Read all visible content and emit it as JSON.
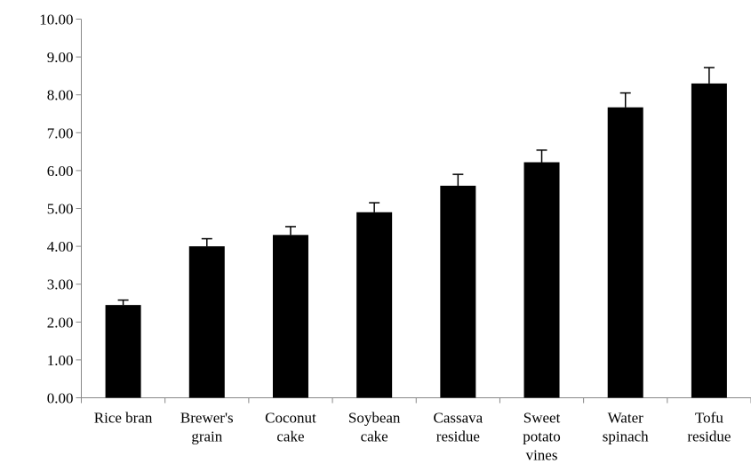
{
  "chart_data": {
    "type": "bar",
    "title": "",
    "xlabel": "",
    "ylabel": "",
    "ylim": [
      0,
      10
    ],
    "y_ticks": [
      "0.00",
      "1.00",
      "2.00",
      "3.00",
      "4.00",
      "5.00",
      "6.00",
      "7.00",
      "8.00",
      "9.00",
      "10.00"
    ],
    "categories": [
      [
        "Rice bran"
      ],
      [
        "Brewer's",
        "grain"
      ],
      [
        "Coconut",
        "cake"
      ],
      [
        "Soybean",
        "cake"
      ],
      [
        "Cassava",
        "residue"
      ],
      [
        "Sweet",
        "potato",
        "vines"
      ],
      [
        "Water",
        "spinach"
      ],
      [
        "Tofu",
        "residue"
      ]
    ],
    "values": [
      2.45,
      4.0,
      4.3,
      4.9,
      5.6,
      6.22,
      7.67,
      8.3
    ],
    "errors": [
      0.13,
      0.2,
      0.22,
      0.25,
      0.3,
      0.32,
      0.38,
      0.42
    ],
    "grid": false,
    "legend": "none",
    "colors": {
      "bar": "#000000",
      "axis": "#888888",
      "error_bar": "#000000"
    }
  }
}
